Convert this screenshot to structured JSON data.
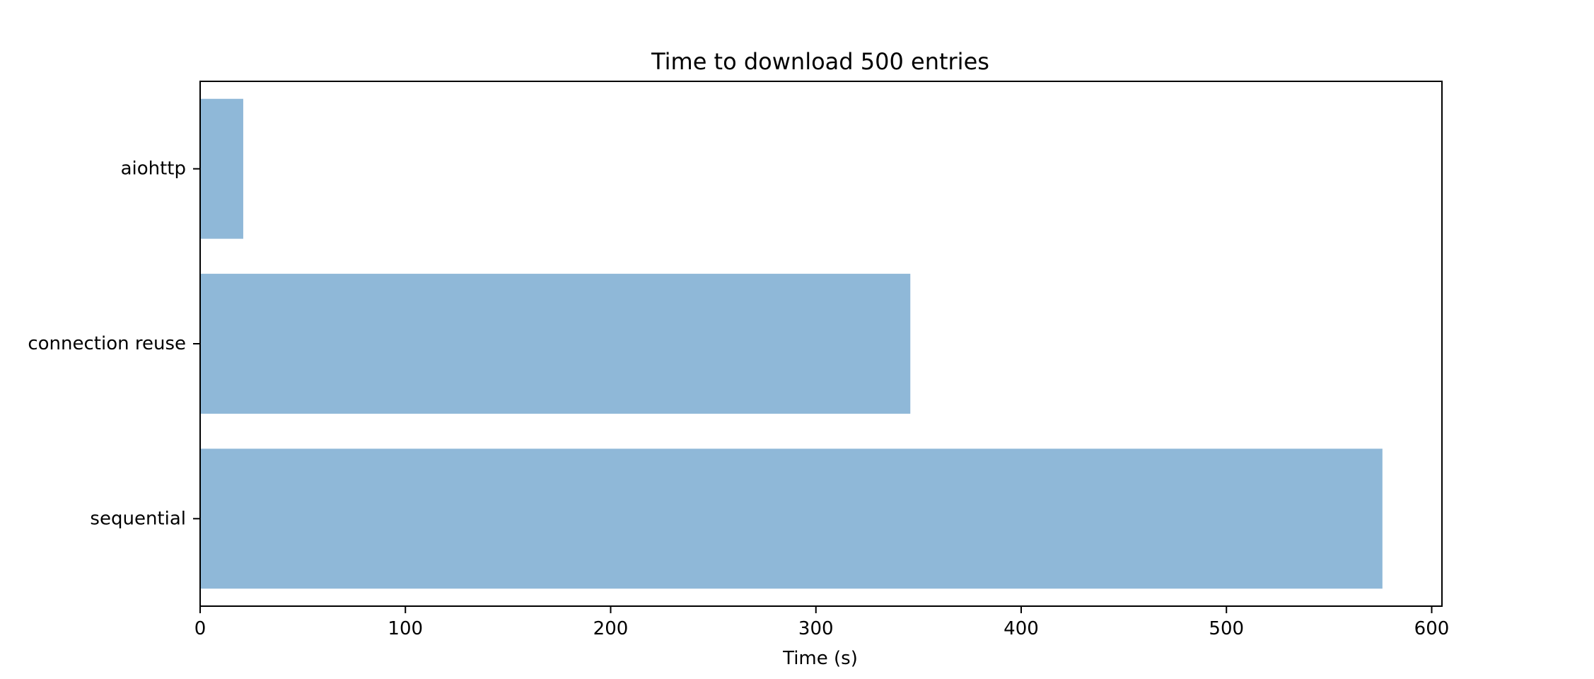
{
  "chart_data": {
    "type": "bar",
    "orientation": "horizontal",
    "title": "Time to download 500 entries",
    "xlabel": "Time (s)",
    "ylabel": "",
    "categories": [
      "aiohttp",
      "connection reuse",
      "sequential"
    ],
    "values": [
      21,
      346,
      576
    ],
    "xlim": [
      0,
      605
    ],
    "xticks": [
      0,
      100,
      200,
      300,
      400,
      500,
      600
    ],
    "xtick_labels": [
      "0",
      "100",
      "200",
      "300",
      "400",
      "500",
      "600"
    ],
    "bar_color": "#8fb8d8",
    "grid": false,
    "legend": "none"
  }
}
